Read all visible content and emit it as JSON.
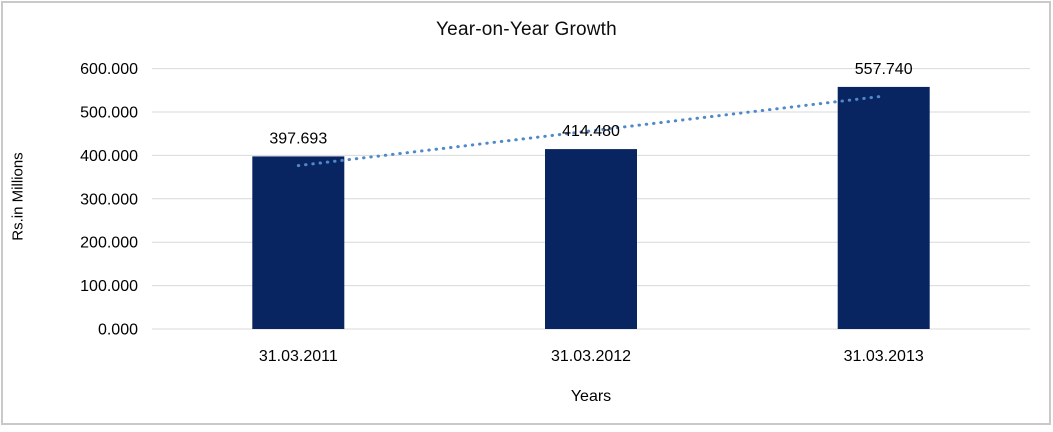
{
  "chart_data": {
    "type": "bar",
    "title": "Year-on-Year Growth",
    "xlabel": "Years",
    "ylabel": "Rs.in Millions",
    "categories": [
      "31.03.2011",
      "31.03.2012",
      "31.03.2013"
    ],
    "values": [
      397.693,
      414.48,
      557.74
    ],
    "data_labels": [
      "397.693",
      "414.480",
      "557.740"
    ],
    "y_ticks": [
      "0.000",
      "100.000",
      "200.000",
      "300.000",
      "400.000",
      "500.000",
      "600.000"
    ],
    "y_tick_values": [
      0,
      100,
      200,
      300,
      400,
      500,
      600
    ],
    "ylim": [
      0,
      600
    ],
    "grid": "horizontal",
    "legend_position": "none",
    "bar_color": "#082562",
    "gridline_color": "#d9d9d9",
    "trendline": {
      "type": "linear",
      "style": "dotted",
      "color": "#5089c8",
      "start_value": 376.6,
      "end_value": 536.7
    }
  }
}
